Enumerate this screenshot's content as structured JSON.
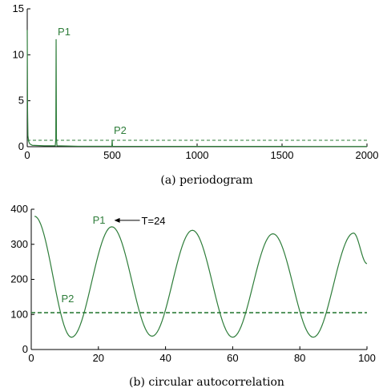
{
  "chart_data": [
    {
      "type": "line",
      "caption": "(a) periodogram",
      "xlim": [
        0,
        2000
      ],
      "ylim": [
        0,
        15
      ],
      "xticks": [
        0,
        500,
        1000,
        1500,
        2000
      ],
      "yticks": [
        0,
        5,
        10,
        15
      ],
      "grid": false,
      "series": [
        {
          "color": "#2e7d3a",
          "points": [
            [
              0,
              12.7
            ],
            [
              2,
              4.0
            ],
            [
              4,
              1.2
            ],
            [
              8,
              0.6
            ],
            [
              15,
              0.3
            ],
            [
              30,
              0.15
            ],
            [
              100,
              0.1
            ],
            [
              165,
              0.1
            ],
            [
              168,
              0.8
            ],
            [
              170,
              11.7
            ],
            [
              172,
              0.9
            ],
            [
              175,
              0.1
            ],
            [
              300,
              0.05
            ],
            [
              498,
              0.05
            ],
            [
              500,
              0.7
            ],
            [
              502,
              0.05
            ],
            [
              1000,
              0.03
            ],
            [
              1500,
              0.03
            ],
            [
              2000,
              0.02
            ]
          ]
        }
      ],
      "threshold": 0.7,
      "annotations": [
        {
          "text": "P1",
          "x": 170,
          "y": 11.7
        },
        {
          "text": "P2",
          "x": 500,
          "y": 0.7
        }
      ]
    },
    {
      "type": "line",
      "caption": "(b) circular autocorrelation",
      "xlim": [
        0,
        100
      ],
      "ylim": [
        0,
        400
      ],
      "xticks": [
        0,
        20,
        40,
        60,
        80,
        100
      ],
      "yticks": [
        0,
        100,
        200,
        300,
        400
      ],
      "grid": false,
      "series": [
        {
          "color": "#2e7d3a",
          "points": [
            [
              1,
              380
            ],
            [
              12,
              35
            ],
            [
              24,
              350
            ],
            [
              36,
              38
            ],
            [
              48,
              340
            ],
            [
              60,
              35
            ],
            [
              72,
              330
            ],
            [
              84,
              35
            ],
            [
              96,
              332
            ],
            [
              100,
              245
            ]
          ]
        }
      ],
      "threshold": 105,
      "annotations": [
        {
          "text": "P1",
          "x": 24,
          "y": 350
        },
        {
          "text": "T=24",
          "x": 24,
          "y": 350
        },
        {
          "text": "P2",
          "x": 8,
          "y": 140
        }
      ]
    }
  ],
  "colors": {
    "series": "#2e7d3a",
    "threshold": "#2e7d3a",
    "axis": "#000000"
  }
}
